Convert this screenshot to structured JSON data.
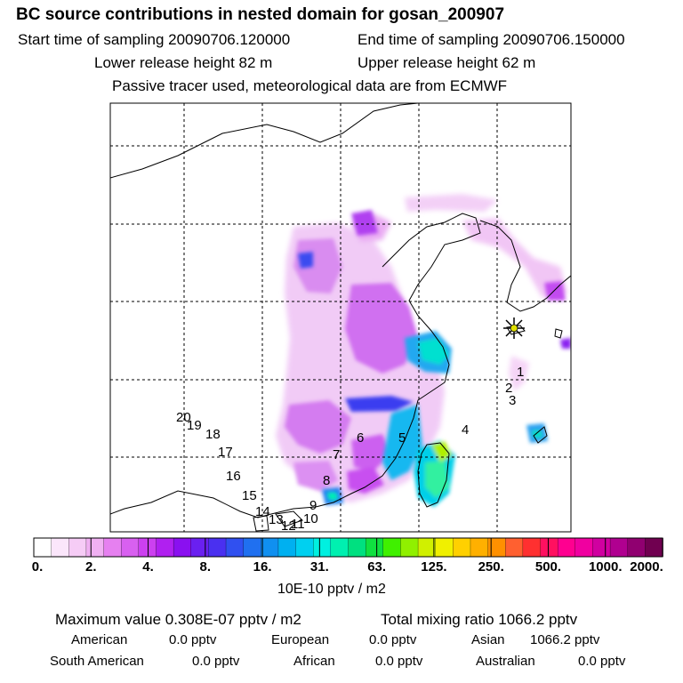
{
  "header": {
    "title": "BC  source contributions in nested domain for gosan_200907",
    "start_label": "Start time of sampling 20090706.120000",
    "end_label": "End time of sampling 20090706.150000",
    "lower_label": "Lower release height   82 m",
    "upper_label": "Upper release height   62 m",
    "note": "Passive tracer used, meteorological data are from ECMWF"
  },
  "map": {
    "point_labels": [
      "1",
      "2",
      "3",
      "4",
      "5",
      "6",
      "7",
      "8",
      "9",
      "10",
      "11",
      "12",
      "13",
      "14",
      "15",
      "16",
      "17",
      "18",
      "19",
      "20"
    ],
    "receptor": "gosan"
  },
  "colorbar": {
    "ticks": [
      "0.",
      "2.",
      "4.",
      "8.",
      "16.",
      "31.",
      "63.",
      "125.",
      "250.",
      "500.",
      "1000.",
      "2000."
    ],
    "colors": [
      "#ffffff",
      "#fbe6fb",
      "#f6ccf6",
      "#f0b0f2",
      "#e680f0",
      "#d860f0",
      "#cc40f0",
      "#b020f0",
      "#8a10f0",
      "#6a20f0",
      "#4a30f0",
      "#3050f0",
      "#2070f0",
      "#1090f0",
      "#00b0f0",
      "#00d0f0",
      "#00f0e0",
      "#00f0b0",
      "#00e080",
      "#10e040",
      "#40f000",
      "#90f000",
      "#d0f000",
      "#f0f000",
      "#ffd000",
      "#ffb000",
      "#ff9000",
      "#ff6030",
      "#ff3030",
      "#ff1060",
      "#ff0090",
      "#f000a0",
      "#d000a0",
      "#b00090",
      "#900070",
      "#700050"
    ],
    "unit": "10E-10 pptv / m2"
  },
  "footer": {
    "max_value": "Maximum value  0.308E-07 pptv / m2",
    "total_mixing": "Total mixing ratio     1066.2 pptv",
    "american_label": "American",
    "american_value": "0.0 pptv",
    "european_label": "European",
    "european_value": "0.0 pptv",
    "asian_label": "Asian",
    "asian_value": "1066.2 pptv",
    "south_american_label": "South American",
    "south_american_value": "0.0 pptv",
    "african_label": "African",
    "african_value": "0.0 pptv",
    "australian_label": "Australian",
    "australian_value": "0.0 pptv"
  }
}
